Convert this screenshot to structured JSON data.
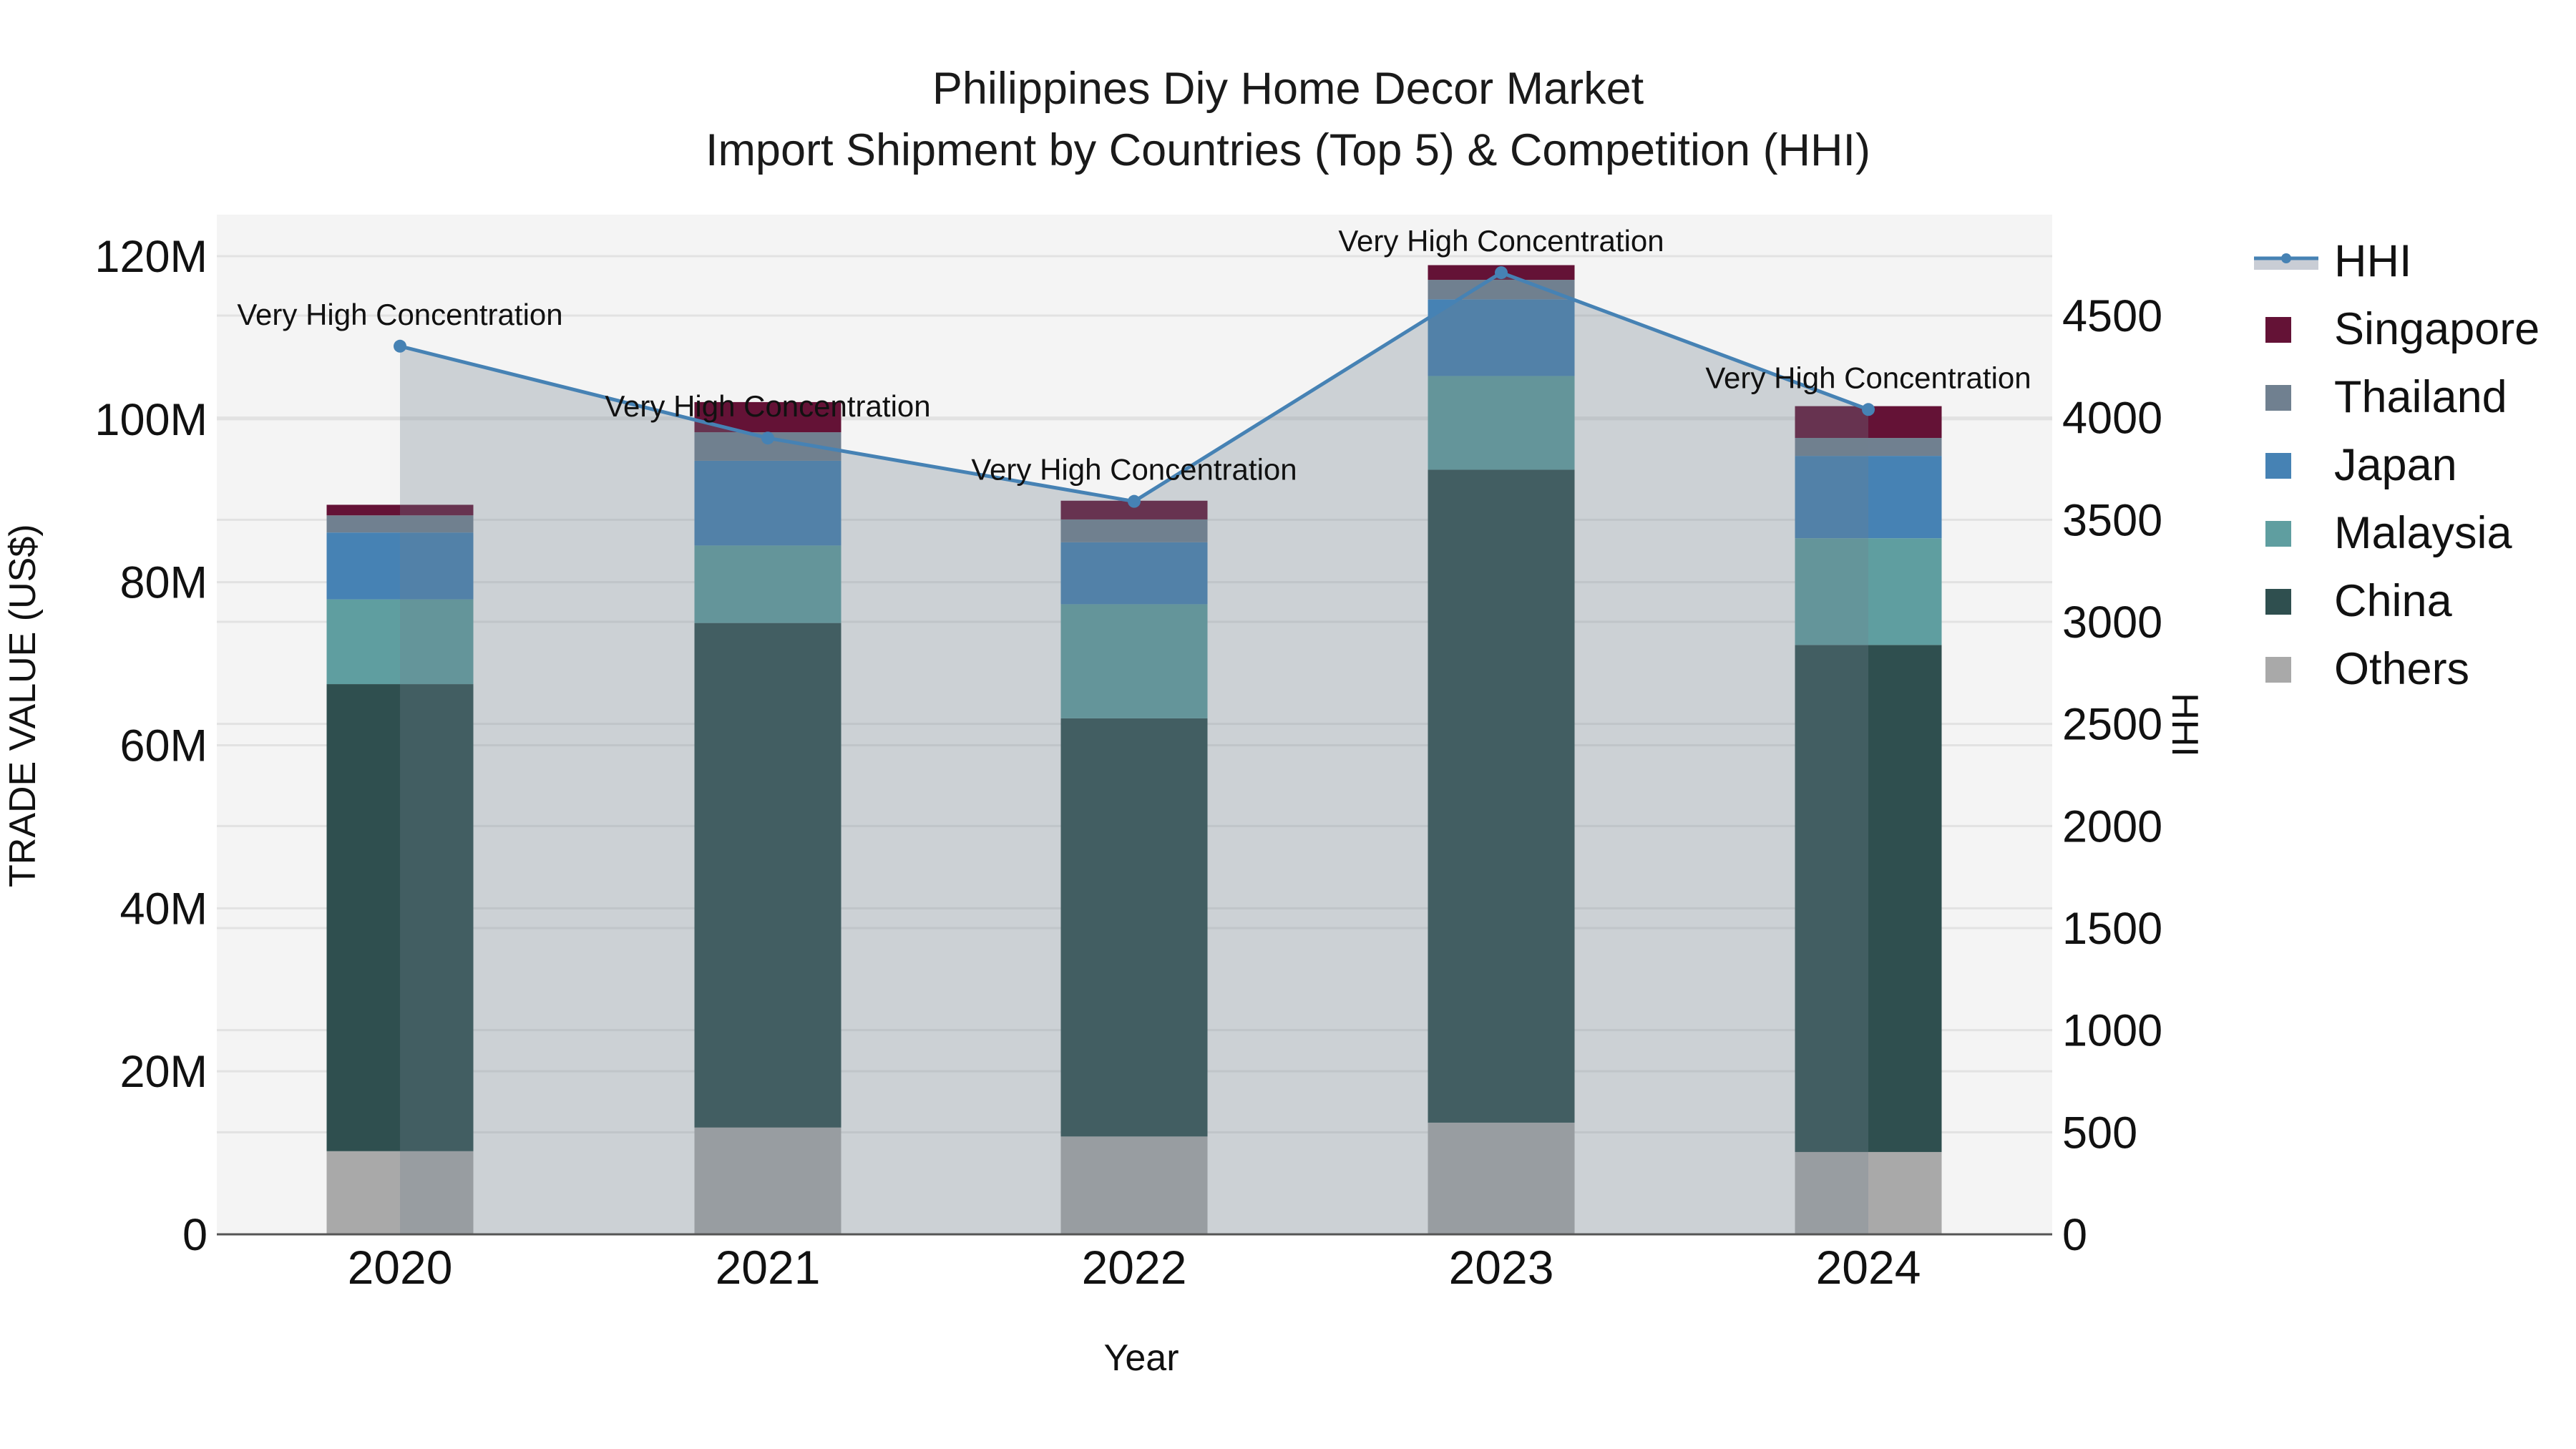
{
  "title": {
    "line1": "Philippines Diy Home Decor Market",
    "line2": "Import Shipment by Countries (Top 5) & Competition (HHI)"
  },
  "axes": {
    "x_title": "Year",
    "y_left_title": "TRADE VALUE (US$)",
    "y_right_title": "HHI",
    "y_left_ticks": [
      "0",
      "20M",
      "40M",
      "60M",
      "80M",
      "100M",
      "120M"
    ],
    "y_right_ticks": [
      "0",
      "500",
      "1000",
      "1500",
      "2000",
      "2500",
      "3000",
      "3500",
      "4000",
      "4500"
    ]
  },
  "legend": [
    {
      "label": "HHI",
      "type": "line",
      "color": "#4682B4"
    },
    {
      "label": "Singapore",
      "type": "bar",
      "color": "#641236"
    },
    {
      "label": "Thailand",
      "type": "bar",
      "color": "#708090"
    },
    {
      "label": "Japan",
      "type": "bar",
      "color": "#4682B4"
    },
    {
      "label": "Malaysia",
      "type": "bar",
      "color": "#5F9EA0"
    },
    {
      "label": "China",
      "type": "bar",
      "color": "#2F4F4F"
    },
    {
      "label": "Others",
      "type": "bar",
      "color": "#A9A9A9"
    }
  ],
  "colors": {
    "plot_bg": "#F4F4F4",
    "grid": "#E2E2E2",
    "hhi_line": "#4682B4",
    "hhi_fill": "rgba(112,128,144,0.30)",
    "axis_line": "#555555"
  },
  "chart_data": {
    "type": "bar",
    "title": "Philippines Diy Home Decor Market — Import Shipment by Countries (Top 5) & Competition (HHI)",
    "xlabel": "Year",
    "ylabel": "TRADE VALUE (US$)",
    "y2label": "HHI",
    "categories": [
      "2020",
      "2021",
      "2022",
      "2023",
      "2024"
    ],
    "stacked": true,
    "ylim": [
      0,
      125000000
    ],
    "y2lim": [
      0,
      4975
    ],
    "grid": true,
    "legend_position": "right",
    "series": [
      {
        "name": "Others",
        "color": "#A9A9A9",
        "values": [
          10200000,
          13100000,
          12000000,
          13700000,
          10100000
        ]
      },
      {
        "name": "China",
        "color": "#2F4F4F",
        "values": [
          57300000,
          61900000,
          51300000,
          80100000,
          62200000
        ]
      },
      {
        "name": "Malaysia",
        "color": "#5F9EA0",
        "values": [
          10400000,
          9500000,
          14000000,
          11500000,
          13100000
        ]
      },
      {
        "name": "Japan",
        "color": "#4682B4",
        "values": [
          8200000,
          10400000,
          7600000,
          9400000,
          10100000
        ]
      },
      {
        "name": "Thailand",
        "color": "#708090",
        "values": [
          2100000,
          3500000,
          2800000,
          2400000,
          2200000
        ]
      },
      {
        "name": "Singapore",
        "color": "#641236",
        "values": [
          1300000,
          3700000,
          2300000,
          1800000,
          3900000
        ]
      }
    ],
    "line_series": {
      "name": "HHI",
      "axis": "right",
      "color": "#4682B4",
      "fill": "tozeroy",
      "values": [
        4350,
        3900,
        3590,
        4710,
        4040
      ],
      "annotations": [
        "Very High Concentration",
        "Very High Concentration",
        "Very High Concentration",
        "Very High Concentration",
        "Very High Concentration"
      ]
    }
  }
}
